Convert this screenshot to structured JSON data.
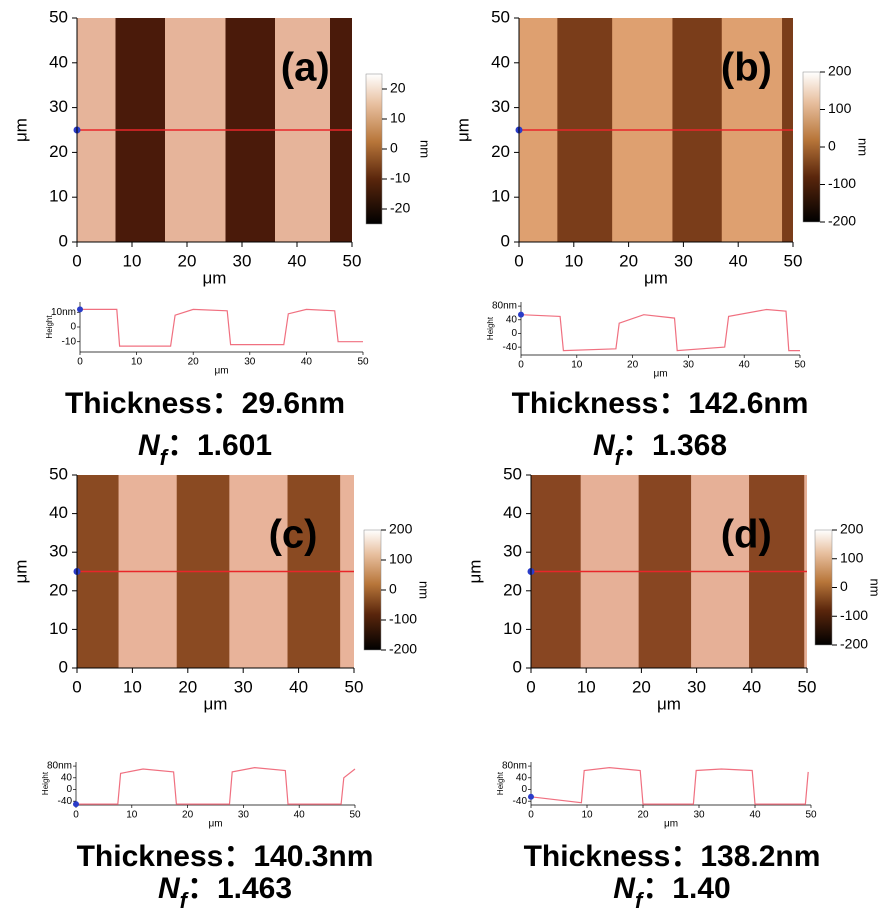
{
  "panels": [
    {
      "label": "(a)",
      "image": {
        "xlim": [
          0,
          50
        ],
        "ylim": [
          0,
          50
        ],
        "xticks": [
          0,
          10,
          20,
          30,
          40,
          50
        ],
        "yticks": [
          0,
          10,
          20,
          30,
          40,
          50
        ],
        "xlabel": "μm",
        "ylabel": "μm",
        "section_y": 25,
        "bright_bands": [
          [
            0,
            7
          ],
          [
            16,
            27
          ],
          [
            36,
            46
          ]
        ],
        "dark_color": "#4a1a0a",
        "bright_color": "#e6b49a"
      },
      "colorbar": {
        "lim": [
          -25,
          25
        ],
        "ticks": [
          20,
          10,
          0,
          -10,
          -20
        ],
        "unit": "nm"
      },
      "profile": {
        "x": [
          0,
          6.5,
          7,
          16,
          16.8,
          20,
          26,
          26.6,
          36,
          36.8,
          40,
          45,
          45.6,
          50
        ],
        "y": [
          12,
          12,
          -13,
          -13,
          8,
          12,
          11,
          -12,
          -12,
          9,
          12,
          11,
          -10,
          -10
        ],
        "xlim": [
          0,
          50
        ],
        "ylim": [
          -17,
          17
        ],
        "xticks": [
          0,
          10,
          20,
          30,
          40,
          50
        ],
        "yticks": [
          {
            "value": 10,
            "label": "10nm"
          },
          0,
          -10
        ],
        "ylabel": "Height",
        "xlabel": "μm"
      },
      "thickness": "Thickness：29.6nm",
      "nf": {
        "symbol": "N",
        "subscript": "f",
        "value": "：1.601"
      }
    },
    {
      "label": "(b)",
      "image": {
        "xlim": [
          0,
          50
        ],
        "ylim": [
          0,
          50
        ],
        "xticks": [
          0,
          10,
          20,
          30,
          40,
          50
        ],
        "yticks": [
          0,
          10,
          20,
          30,
          40,
          50
        ],
        "xlabel": "μm",
        "ylabel": "μm",
        "section_y": 25,
        "bright_bands": [
          [
            0,
            7
          ],
          [
            17,
            28
          ],
          [
            37,
            48
          ]
        ],
        "dark_color": "#7a3d1a",
        "bright_color": "#dea070"
      },
      "colorbar": {
        "lim": [
          -200,
          200
        ],
        "ticks": [
          200,
          100,
          0,
          -100,
          -200
        ],
        "unit": "nm"
      },
      "profile": {
        "x": [
          0,
          7,
          7.6,
          17,
          17.6,
          22,
          27.5,
          28,
          36.5,
          37.2,
          44,
          47.5,
          48,
          50
        ],
        "y": [
          55,
          50,
          -50,
          -45,
          30,
          55,
          45,
          -50,
          -40,
          50,
          70,
          65,
          -50,
          -50
        ],
        "xlim": [
          0,
          50
        ],
        "ylim": [
          -63,
          92
        ],
        "xticks": [
          0,
          10,
          20,
          30,
          40,
          50
        ],
        "yticks": [
          {
            "value": 80,
            "label": "80nm"
          },
          40,
          0,
          -40
        ],
        "ylabel": "Height",
        "xlabel": "μm"
      },
      "thickness": "Thickness：142.6nm",
      "nf": {
        "symbol": "N",
        "subscript": "f",
        "value": "：1.368"
      }
    },
    {
      "label": "(c)",
      "image": {
        "xlim": [
          0,
          50
        ],
        "ylim": [
          0,
          50
        ],
        "xticks": [
          0,
          10,
          20,
          30,
          40,
          50
        ],
        "yticks": [
          0,
          10,
          20,
          30,
          40,
          50
        ],
        "xlabel": "μm",
        "ylabel": "μm",
        "section_y": 25,
        "bright_bands": [
          [
            7.5,
            18
          ],
          [
            27.5,
            38
          ],
          [
            47.5,
            50
          ]
        ],
        "dark_color": "#8a4a22",
        "bright_color": "#e8b39a"
      },
      "colorbar": {
        "lim": [
          -200,
          200
        ],
        "ticks": [
          200,
          100,
          0,
          -100,
          -200
        ],
        "unit": "nm"
      },
      "profile": {
        "x": [
          0,
          7.5,
          8,
          12,
          17.5,
          18,
          27.5,
          28,
          32,
          37.5,
          38,
          47.5,
          48,
          50
        ],
        "y": [
          -50,
          -50,
          55,
          70,
          60,
          -50,
          -50,
          60,
          75,
          65,
          -50,
          -50,
          40,
          70
        ],
        "xlim": [
          0,
          50
        ],
        "ylim": [
          -53,
          94
        ],
        "xticks": [
          0,
          10,
          20,
          30,
          40,
          50
        ],
        "yticks": [
          {
            "value": 80,
            "label": "80nm"
          },
          40,
          0,
          -40
        ],
        "ylabel": "Height",
        "xlabel": "μm"
      },
      "thickness": "Thickness：140.3nm",
      "nf": {
        "symbol": "N",
        "subscript": "f",
        "value": "：1.463"
      }
    },
    {
      "label": "(d)",
      "image": {
        "xlim": [
          0,
          50
        ],
        "ylim": [
          0,
          50
        ],
        "xticks": [
          0,
          10,
          20,
          30,
          40,
          50
        ],
        "yticks": [
          0,
          10,
          20,
          30,
          40,
          50
        ],
        "xlabel": "μm",
        "ylabel": "μm",
        "section_y": 25,
        "bright_bands": [
          [
            9,
            19.5
          ],
          [
            29,
            39.5
          ],
          [
            49.5,
            50
          ]
        ],
        "dark_color": "#884622",
        "bright_color": "#e6b097"
      },
      "colorbar": {
        "lim": [
          -200,
          200
        ],
        "ticks": [
          200,
          100,
          0,
          -100,
          -200
        ],
        "unit": "nm"
      },
      "profile": {
        "x": [
          0,
          9,
          9.5,
          14,
          19.5,
          20,
          29,
          29.5,
          34,
          39.5,
          40,
          49,
          49.5
        ],
        "y": [
          -25,
          -45,
          65,
          75,
          65,
          -50,
          -50,
          65,
          70,
          65,
          -50,
          -50,
          60
        ],
        "xlim": [
          0,
          50
        ],
        "ylim": [
          -53,
          94
        ],
        "xticks": [
          0,
          10,
          20,
          30,
          40,
          50
        ],
        "yticks": [
          {
            "value": 80,
            "label": "80nm"
          },
          40,
          0,
          -40
        ],
        "ylabel": "Height",
        "xlabel": "μm"
      },
      "thickness": "Thickness：138.2nm",
      "nf": {
        "symbol": "N",
        "subscript": "f",
        "value": "：1.40"
      }
    }
  ]
}
